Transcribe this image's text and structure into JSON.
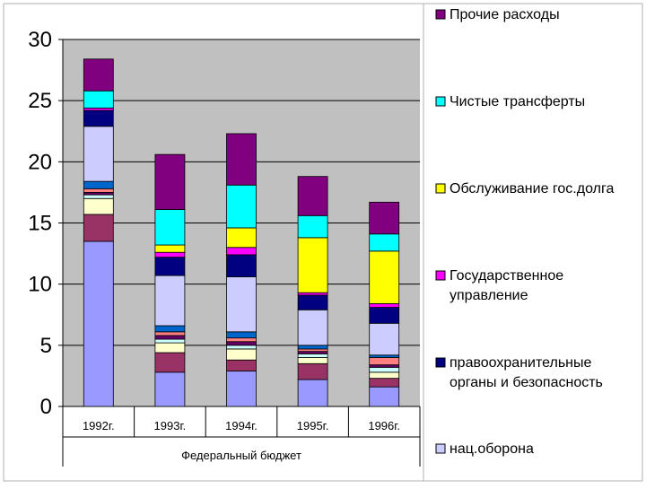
{
  "chart_data": {
    "type": "stacked-bar",
    "categories": [
      "1992г.",
      "1993г.",
      "1994г.",
      "1995г.",
      "1996г."
    ],
    "group_label": "Федеральный бюджет",
    "ylim": [
      0,
      30
    ],
    "yticks": [
      0,
      5,
      10,
      15,
      20,
      25,
      30
    ],
    "ytick_labels": [
      "0",
      "5",
      "10",
      "15",
      "20",
      "25",
      "30"
    ],
    "grid": true,
    "legend_position": "right",
    "plot_background": "#c0c0c0",
    "series": [
      {
        "color": "#9999ff",
        "values": [
          13.5,
          2.8,
          2.9,
          2.2,
          1.6
        ]
      },
      {
        "color": "#993366",
        "values": [
          2.2,
          1.6,
          0.9,
          1.3,
          0.7
        ]
      },
      {
        "color": "#ffffcc",
        "values": [
          1.3,
          0.8,
          0.9,
          0.5,
          0.5
        ]
      },
      {
        "color": "#ccffff",
        "values": [
          0.3,
          0.3,
          0.3,
          0.3,
          0.4
        ]
      },
      {
        "color": "#660066",
        "values": [
          0.2,
          0.3,
          0.3,
          0.2,
          0.2
        ]
      },
      {
        "color": "#ff8080",
        "values": [
          0.3,
          0.3,
          0.3,
          0.2,
          0.6
        ]
      },
      {
        "color": "#0066cc",
        "values": [
          0.6,
          0.5,
          0.5,
          0.3,
          0.2
        ]
      },
      {
        "name": "нац.оборона",
        "color": "#ccccff",
        "values": [
          4.5,
          4.1,
          4.5,
          2.9,
          2.6
        ]
      },
      {
        "name": "правоохранительные органы и безопасность",
        "color": "#000080",
        "values": [
          1.3,
          1.5,
          1.8,
          1.2,
          1.3
        ]
      },
      {
        "name": "Государственное управление",
        "color": "#ff00ff",
        "values": [
          0.2,
          0.4,
          0.6,
          0.2,
          0.3
        ]
      },
      {
        "name": "Обслуживание гос.долга",
        "color": "#ffff00",
        "values": [
          0,
          0.6,
          1.6,
          4.5,
          4.3
        ]
      },
      {
        "name": "Чистые трансферты",
        "color": "#00ffff",
        "values": [
          1.4,
          2.9,
          3.5,
          1.8,
          1.4
        ]
      },
      {
        "name": "Прочие расходы",
        "color": "#800080",
        "values": [
          2.6,
          4.5,
          4.2,
          3.2,
          2.6
        ]
      }
    ],
    "legend": [
      {
        "label": "Прочие расходы",
        "color": "#800080"
      },
      {
        "label": "Чистые трансферты",
        "color": "#00ffff"
      },
      {
        "label": "Обслуживание гос.долга",
        "color": "#ffff00"
      },
      {
        "label": "Государственное управление",
        "color": "#ff00ff"
      },
      {
        "label": "правоохранительные органы и безопасность",
        "color": "#000080"
      },
      {
        "label": "нац.оборона",
        "color": "#ccccff"
      }
    ]
  }
}
